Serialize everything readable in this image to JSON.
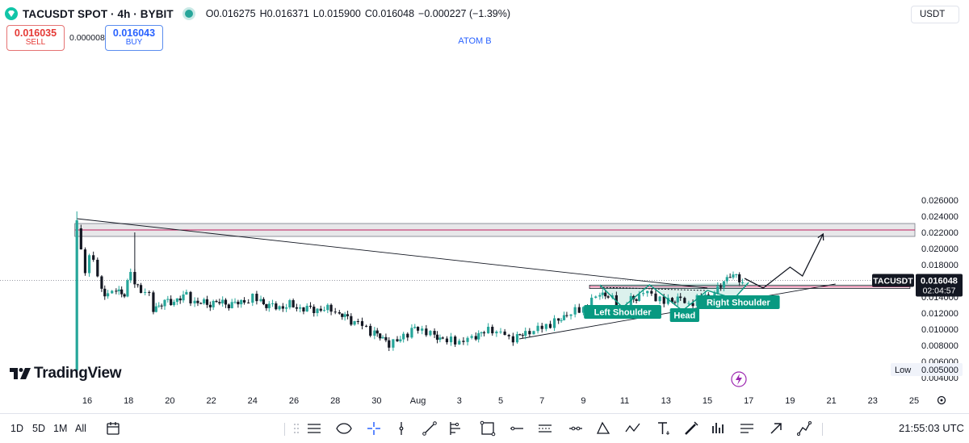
{
  "header": {
    "title": "TACUSDT SPOT · 4h · BYBIT",
    "open": "O0.016275",
    "high": "H0.016371",
    "low": "L0.015900",
    "close": "C0.016048",
    "change": "−0.000227 (−1.39%)"
  },
  "trade": {
    "sell_price": "0.016035",
    "sell_label": "SELL",
    "spread": "0.000008",
    "buy_price": "0.016043",
    "buy_label": "BUY"
  },
  "currency": "USDT",
  "brand": "TradingView",
  "bottom_bar": {
    "timeframes": [
      "1D",
      "5D",
      "1M",
      "All"
    ],
    "clock": "21:55:03 UTC"
  },
  "colors": {
    "up": "#26a69a",
    "down": "#131722",
    "pattern": "#089981",
    "accent": "#2962ff",
    "resistance_line": "#c2185b",
    "lightning": "#9c27b0"
  },
  "chart_data": {
    "type": "candlestick",
    "symbol": "TACUSDT",
    "timeframe": "4h",
    "exchange": "BYBIT",
    "last_price": "0.016048",
    "countdown": "02:04:57",
    "low_label": "Low",
    "low_value": "0.005000",
    "y_axis": {
      "ticks": [
        0.004,
        0.006,
        0.008,
        0.01,
        0.012,
        0.014,
        0.016,
        0.018,
        0.02,
        0.022,
        0.024
      ],
      "range": [
        0.0039,
        0.0262
      ]
    },
    "x_axis": {
      "ticks": [
        {
          "t": 16,
          "label": "16"
        },
        {
          "t": 18,
          "label": "18"
        },
        {
          "t": 20,
          "label": "20"
        },
        {
          "t": 22,
          "label": "22"
        },
        {
          "t": 24,
          "label": "24"
        },
        {
          "t": 26,
          "label": "26"
        },
        {
          "t": 28,
          "label": "28"
        },
        {
          "t": 30,
          "label": "30"
        },
        {
          "t": 32,
          "label": "Aug"
        },
        {
          "t": 34,
          "label": "3"
        },
        {
          "t": 36,
          "label": "5"
        },
        {
          "t": 38,
          "label": "7"
        },
        {
          "t": 40,
          "label": "9"
        },
        {
          "t": 42,
          "label": "11"
        },
        {
          "t": 44,
          "label": "13"
        },
        {
          "t": 46,
          "label": "15"
        },
        {
          "t": 48,
          "label": "17"
        },
        {
          "t": 50,
          "label": "19"
        },
        {
          "t": 52,
          "label": "21"
        },
        {
          "t": 54,
          "label": "23"
        },
        {
          "t": 56,
          "label": "25"
        }
      ]
    },
    "price_path": [
      [
        15.5,
        0.0225
      ],
      [
        15.7,
        0.0195
      ],
      [
        15.9,
        0.0175
      ],
      [
        16.1,
        0.019
      ],
      [
        16.3,
        0.0185
      ],
      [
        16.5,
        0.0165
      ],
      [
        16.7,
        0.015
      ],
      [
        17.0,
        0.0143
      ],
      [
        17.4,
        0.0148
      ],
      [
        17.8,
        0.0145
      ],
      [
        18.1,
        0.0168
      ],
      [
        18.3,
        0.0158
      ],
      [
        18.6,
        0.0148
      ],
      [
        19.0,
        0.0142
      ],
      [
        19.2,
        0.0125
      ],
      [
        19.6,
        0.0132
      ],
      [
        20.2,
        0.0135
      ],
      [
        20.8,
        0.0142
      ],
      [
        21.2,
        0.0133
      ],
      [
        21.8,
        0.0132
      ],
      [
        22.4,
        0.0133
      ],
      [
        23.0,
        0.0131
      ],
      [
        23.6,
        0.0134
      ],
      [
        24.0,
        0.0139
      ],
      [
        24.4,
        0.0135
      ],
      [
        24.8,
        0.0129
      ],
      [
        25.3,
        0.0127
      ],
      [
        25.8,
        0.013
      ],
      [
        26.3,
        0.0126
      ],
      [
        26.8,
        0.0125
      ],
      [
        27.3,
        0.0124
      ],
      [
        27.8,
        0.0125
      ],
      [
        28.2,
        0.0119
      ],
      [
        28.6,
        0.0113
      ],
      [
        29.1,
        0.0108
      ],
      [
        29.5,
        0.0101
      ],
      [
        29.9,
        0.0095
      ],
      [
        30.3,
        0.0088
      ],
      [
        30.6,
        0.0083
      ],
      [
        31.0,
        0.0085
      ],
      [
        31.3,
        0.0092
      ],
      [
        31.7,
        0.0098
      ],
      [
        32.0,
        0.0101
      ],
      [
        32.4,
        0.0097
      ],
      [
        32.8,
        0.0092
      ],
      [
        33.2,
        0.0088
      ],
      [
        33.6,
        0.0085
      ],
      [
        34.0,
        0.0085
      ],
      [
        34.4,
        0.0087
      ],
      [
        34.8,
        0.0092
      ],
      [
        35.2,
        0.0097
      ],
      [
        35.6,
        0.0099
      ],
      [
        36.0,
        0.0096
      ],
      [
        36.4,
        0.0089
      ],
      [
        36.8,
        0.009
      ],
      [
        37.2,
        0.0095
      ],
      [
        37.6,
        0.0099
      ],
      [
        38.0,
        0.0102
      ],
      [
        38.4,
        0.0107
      ],
      [
        38.8,
        0.0111
      ],
      [
        39.2,
        0.0118
      ],
      [
        39.6,
        0.0122
      ],
      [
        40.0,
        0.0126
      ],
      [
        40.4,
        0.0135
      ],
      [
        40.8,
        0.0145
      ],
      [
        41.2,
        0.0141
      ],
      [
        41.6,
        0.0132
      ],
      [
        41.9,
        0.0127
      ],
      [
        42.3,
        0.0136
      ],
      [
        42.7,
        0.0143
      ],
      [
        43.1,
        0.0146
      ],
      [
        43.5,
        0.014
      ],
      [
        43.9,
        0.0133
      ],
      [
        44.3,
        0.0138
      ],
      [
        44.7,
        0.0136
      ],
      [
        45.1,
        0.0131
      ],
      [
        45.5,
        0.0137
      ],
      [
        45.9,
        0.0142
      ],
      [
        46.2,
        0.0135
      ],
      [
        46.5,
        0.0149
      ],
      [
        46.8,
        0.016
      ],
      [
        47.1,
        0.0168
      ],
      [
        47.4,
        0.0163
      ],
      [
        47.7,
        0.016
      ]
    ],
    "resistance_zone": [
      0.0215,
      0.0231
    ],
    "resistance_line": 0.0223,
    "support_zone": [
      0.01505,
      0.01545
    ],
    "neckline": [
      [
        40.8,
        0.0152
      ],
      [
        45.9,
        0.0148
      ]
    ],
    "descending_trendline": [
      [
        15.5,
        0.0237
      ],
      [
        46.0,
        0.0151
      ]
    ],
    "ascending_trendline": [
      [
        36.9,
        0.0088
      ],
      [
        52.2,
        0.0156
      ]
    ],
    "projection": [
      [
        47.8,
        0.0163
      ],
      [
        48.7,
        0.0151
      ],
      [
        50.0,
        0.0177
      ],
      [
        50.6,
        0.0166
      ],
      [
        51.6,
        0.0218
      ]
    ],
    "pattern": {
      "name": "Head and Shoulders",
      "labels": [
        "Left Shoulder",
        "Head",
        "Right Shoulder"
      ],
      "vertices": [
        [
          40.8,
          0.0155
        ],
        [
          41.9,
          0.0127
        ],
        [
          43.2,
          0.0155
        ],
        [
          44.8,
          0.0123
        ],
        [
          46.0,
          0.0148
        ],
        [
          47.3,
          0.0138
        ],
        [
          48.0,
          0.0158
        ]
      ]
    },
    "annotation": "ATOM B",
    "last_bar_marker": "lightning"
  }
}
